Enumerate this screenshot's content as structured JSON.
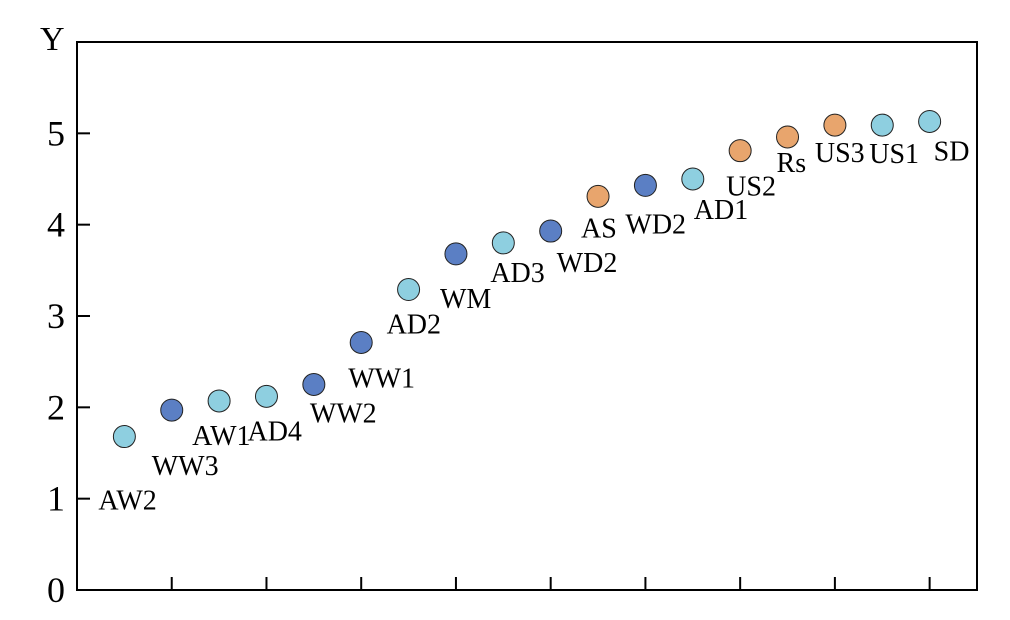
{
  "chart_data": {
    "type": "scatter",
    "title": "",
    "xlabel": "",
    "ylabel": "Y",
    "xlim": [
      0,
      19
    ],
    "ylim": [
      0,
      6
    ],
    "yticks": [
      0,
      1,
      2,
      3,
      4,
      5
    ],
    "xticks": [
      2,
      4,
      6,
      8,
      10,
      12,
      14,
      16,
      18
    ],
    "xtick_labels_shown": false,
    "grid": false,
    "legend": "none",
    "colors": {
      "light_blue": "#8ecfe0",
      "dark_blue": "#5b7fc4",
      "orange": "#e8a56d"
    },
    "points": [
      {
        "x": 1,
        "y": 1.68,
        "label": "AW2",
        "color": "light_blue"
      },
      {
        "x": 2,
        "y": 1.97,
        "label": "WW3",
        "color": "dark_blue"
      },
      {
        "x": 3,
        "y": 2.07,
        "label": "AW1",
        "color": "light_blue"
      },
      {
        "x": 4,
        "y": 2.12,
        "label": "AD4",
        "color": "light_blue"
      },
      {
        "x": 5,
        "y": 2.25,
        "label": "WW2",
        "color": "dark_blue"
      },
      {
        "x": 6,
        "y": 2.71,
        "label": "WW1",
        "color": "dark_blue"
      },
      {
        "x": 7,
        "y": 3.29,
        "label": "AD2",
        "color": "light_blue"
      },
      {
        "x": 8,
        "y": 3.68,
        "label": "WM",
        "color": "dark_blue"
      },
      {
        "x": 9,
        "y": 3.8,
        "label": "AD3",
        "color": "light_blue"
      },
      {
        "x": 10,
        "y": 3.93,
        "label": "WD2",
        "color": "dark_blue"
      },
      {
        "x": 11,
        "y": 4.31,
        "label": "AS",
        "color": "orange"
      },
      {
        "x": 12,
        "y": 4.43,
        "label": "WD2",
        "color": "dark_blue"
      },
      {
        "x": 13,
        "y": 4.5,
        "label": "AD1",
        "color": "light_blue"
      },
      {
        "x": 14,
        "y": 4.81,
        "label": "US2",
        "color": "orange"
      },
      {
        "x": 15,
        "y": 4.96,
        "label": "Rs",
        "color": "orange"
      },
      {
        "x": 16,
        "y": 5.09,
        "label": "US3",
        "color": "orange"
      },
      {
        "x": 17,
        "y": 5.09,
        "label": "US1",
        "color": "light_blue"
      },
      {
        "x": 18,
        "y": 5.13,
        "label": "SD",
        "color": "light_blue"
      }
    ]
  }
}
